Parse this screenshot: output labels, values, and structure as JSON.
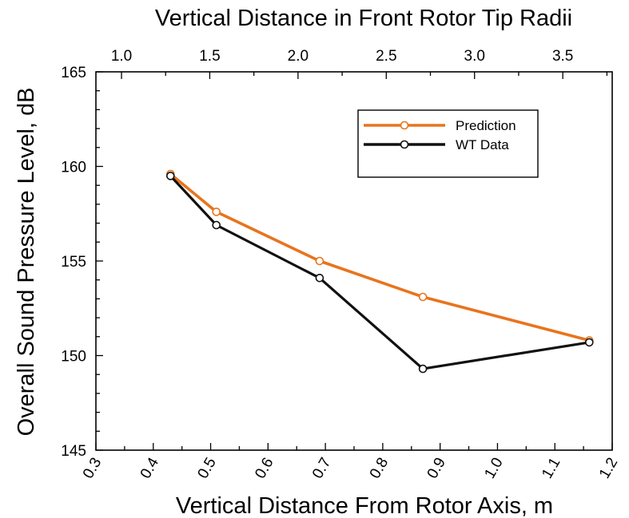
{
  "chart_data": {
    "type": "line",
    "top_axis_label": "Vertical Distance in Front Rotor Tip Radii",
    "top_ticks": [
      "1.0",
      "1.5",
      "2.0",
      "2.5",
      "3.0",
      "3.5"
    ],
    "top_tick_values": [
      1.0,
      1.5,
      2.0,
      2.5,
      3.0,
      3.5
    ],
    "top_xlim": [
      0.855,
      3.78
    ],
    "xlabel": "Vertical Distance From Rotor Axis, m",
    "ylabel": "Overall Sound Pressure Level, dB",
    "xlim": [
      0.3,
      1.2
    ],
    "ylim": [
      145,
      165
    ],
    "xticks": [
      "0.3",
      "0.4",
      "0.5",
      "0.6",
      "0.7",
      "0.8",
      "0.9",
      "1.0",
      "1.1",
      "1.2"
    ],
    "xtick_values": [
      0.3,
      0.4,
      0.5,
      0.6,
      0.7,
      0.8,
      0.9,
      1.0,
      1.1,
      1.2
    ],
    "yticks": [
      "145",
      "150",
      "155",
      "160",
      "165"
    ],
    "ytick_values": [
      145,
      150,
      155,
      160,
      165
    ],
    "grid": false,
    "legend_position": "top-right",
    "series": [
      {
        "name": "Prediction",
        "color": "#E8741E",
        "x": [
          0.43,
          0.51,
          0.69,
          0.87,
          1.16
        ],
        "y": [
          159.6,
          157.6,
          155.0,
          153.1,
          150.8
        ]
      },
      {
        "name": "WT Data",
        "color": "#111111",
        "x": [
          0.43,
          0.51,
          0.69,
          0.87,
          1.16
        ],
        "y": [
          159.5,
          156.9,
          154.1,
          149.3,
          150.7
        ]
      }
    ]
  }
}
